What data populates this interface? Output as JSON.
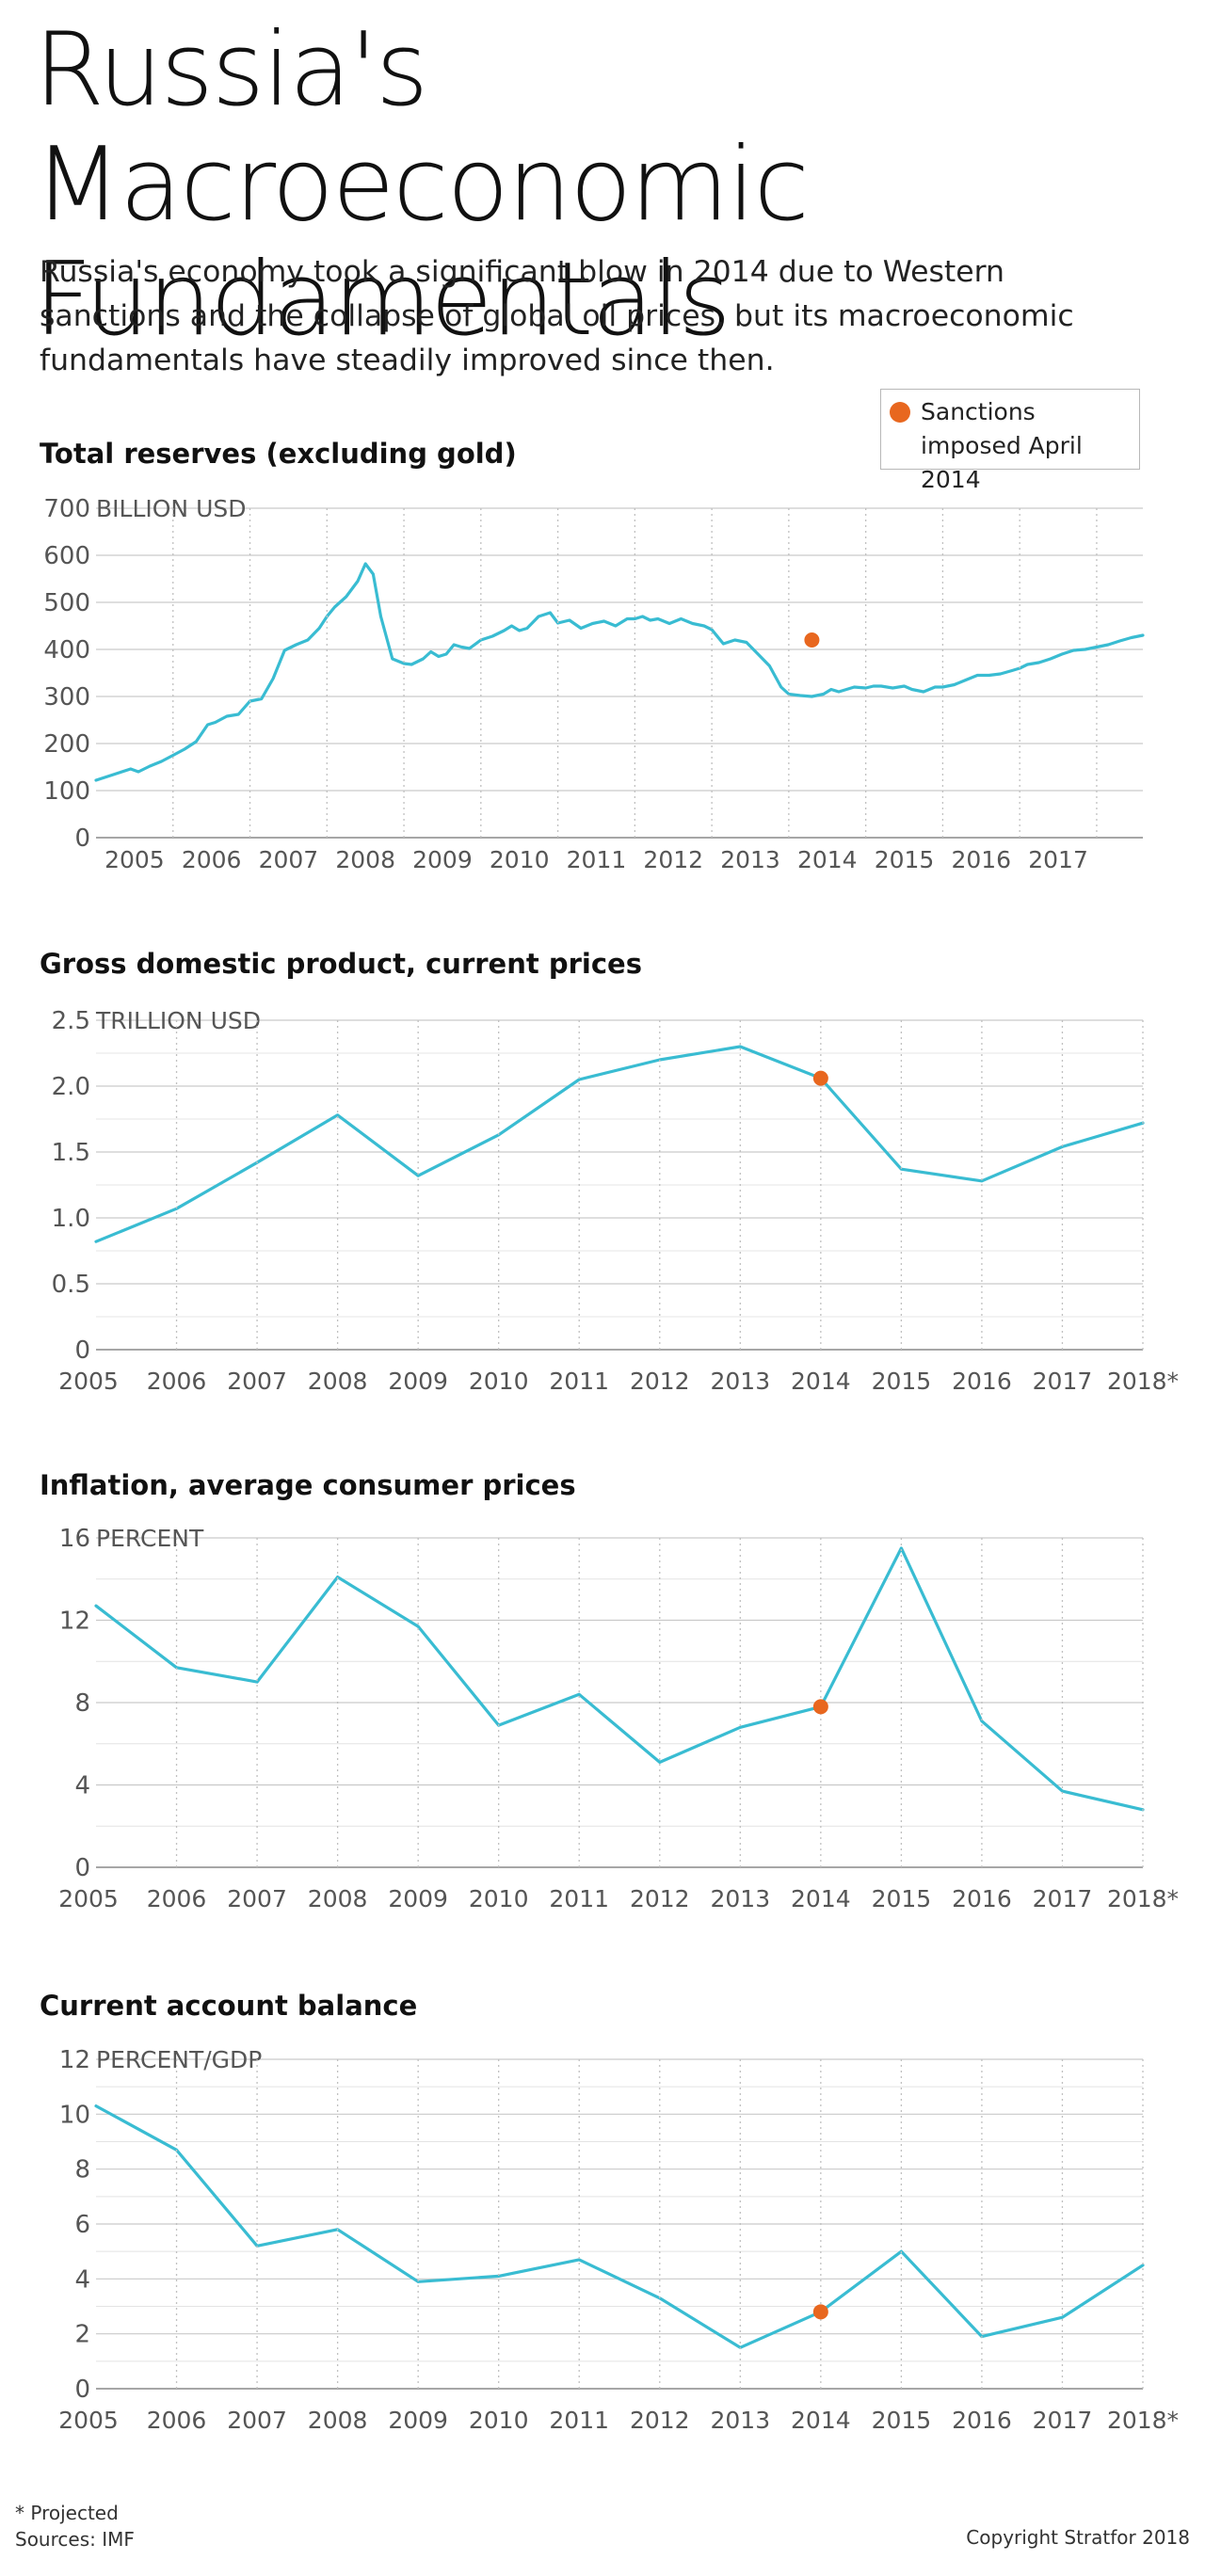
{
  "header": {
    "title": "Russia's Macroeconomic Fundamentals",
    "subtitle": "Russia's economy took a significant blow in 2014 due to Western sanctions and the collapse of global oil prices, but its macroeconomic fundamentals have steadily improved since then."
  },
  "legend": {
    "marker_label": "Sanctions imposed April 2014",
    "marker_color": "#e8671f"
  },
  "colors": {
    "line": "#39bcd2",
    "marker": "#e8671f",
    "grid": "#c9c9c9",
    "axis_text": "#555555"
  },
  "chart_data": [
    {
      "type": "line",
      "title": "Total reserves (excluding gold)",
      "unit_label": "BILLION USD",
      "ylim": [
        0,
        700
      ],
      "yticks": [
        "0",
        "100",
        "200",
        "300",
        "400",
        "500",
        "600",
        "700"
      ],
      "xlim": [
        2004.0,
        2017.6
      ],
      "xtick_labels": [
        "2005",
        "2006",
        "2007",
        "2008",
        "2009",
        "2010",
        "2011",
        "2012",
        "2013",
        "2014",
        "2015",
        "2016",
        "2017"
      ],
      "x_label_positions": [
        2004.5,
        2005.5,
        2006.5,
        2007.5,
        2008.5,
        2009.5,
        2010.5,
        2011.5,
        2012.5,
        2013.5,
        2014.5,
        2015.5,
        2016.5
      ],
      "x_gridlines": [
        2005,
        2006,
        2007,
        2008,
        2009,
        2010,
        2011,
        2012,
        2013,
        2014,
        2015,
        2016,
        2017
      ],
      "series": [
        {
          "x": [
            2004.0,
            2004.15,
            2004.3,
            2004.45,
            2004.55,
            2004.7,
            2004.85,
            2005.0,
            2005.15,
            2005.3,
            2005.45,
            2005.55,
            2005.7,
            2005.85,
            2006.0,
            2006.15,
            2006.3,
            2006.45,
            2006.6,
            2006.75,
            2006.9,
            2007.0,
            2007.1,
            2007.25,
            2007.4,
            2007.5,
            2007.6,
            2007.7,
            2007.85,
            2008.0,
            2008.1,
            2008.25,
            2008.35,
            2008.45,
            2008.55,
            2008.65,
            2008.75,
            2008.85,
            2009.0,
            2009.15,
            2009.3,
            2009.4,
            2009.5,
            2009.6,
            2009.75,
            2009.9,
            2010.0,
            2010.15,
            2010.3,
            2010.45,
            2010.6,
            2010.75,
            2010.9,
            2011.0,
            2011.1,
            2011.2,
            2011.3,
            2011.45,
            2011.6,
            2011.75,
            2011.9,
            2012.0,
            2012.15,
            2012.3,
            2012.45,
            2012.6,
            2012.75,
            2012.9,
            2013.0,
            2013.15,
            2013.3,
            2013.45,
            2013.55,
            2013.65,
            2013.75,
            2013.85,
            2014.0,
            2014.1,
            2014.2,
            2014.35,
            2014.5,
            2014.6,
            2014.75,
            2014.9,
            2015.0,
            2015.15,
            2015.3,
            2015.45,
            2015.6,
            2015.75,
            2015.9,
            2016.0,
            2016.1,
            2016.25,
            2016.4,
            2016.55,
            2016.7,
            2016.85,
            2017.0,
            2017.15,
            2017.3,
            2017.45,
            2017.6
          ],
          "y": [
            122,
            130,
            138,
            146,
            140,
            152,
            162,
            175,
            188,
            204,
            240,
            245,
            258,
            262,
            290,
            295,
            338,
            398,
            410,
            420,
            445,
            470,
            490,
            512,
            545,
            582,
            560,
            470,
            380,
            370,
            368,
            380,
            395,
            385,
            390,
            410,
            405,
            402,
            420,
            428,
            440,
            450,
            440,
            445,
            470,
            478,
            456,
            462,
            445,
            455,
            460,
            450,
            465,
            465,
            470,
            462,
            465,
            455,
            465,
            455,
            450,
            442,
            412,
            420,
            415,
            390,
            365,
            320,
            305,
            302,
            300,
            305,
            315,
            310,
            315,
            320,
            318,
            322,
            322,
            318,
            322,
            315,
            310,
            320,
            320,
            325,
            335,
            345,
            345,
            348,
            355,
            360,
            368,
            372,
            380,
            390,
            398,
            400,
            405,
            410,
            418,
            425,
            430
          ],
          "name": ""
        }
      ],
      "marker": {
        "x": 2013.3,
        "y": 420
      }
    },
    {
      "type": "line",
      "title": "Gross domestic product, current prices",
      "unit_label": "TRILLION USD",
      "ylim": [
        0,
        2.5
      ],
      "yticks": [
        "0",
        "0.5",
        "1.0",
        "1.5",
        "2.0",
        "2.5"
      ],
      "categories": [
        "2005",
        "2006",
        "2007",
        "2008",
        "2009",
        "2010",
        "2011",
        "2012",
        "2013",
        "2014",
        "2015",
        "2016",
        "2017",
        "2018*"
      ],
      "series": [
        {
          "name": "",
          "values": [
            0.82,
            1.07,
            1.42,
            1.78,
            1.32,
            1.63,
            2.05,
            2.2,
            2.3,
            2.06,
            1.37,
            1.28,
            1.54,
            1.72
          ]
        }
      ],
      "marker": {
        "x": "2014",
        "y": 2.06
      }
    },
    {
      "type": "line",
      "title": "Inflation, average consumer prices",
      "unit_label": "PERCENT",
      "ylim": [
        0,
        16
      ],
      "yticks": [
        "0",
        "4",
        "8",
        "12",
        "16"
      ],
      "categories": [
        "2005",
        "2006",
        "2007",
        "2008",
        "2009",
        "2010",
        "2011",
        "2012",
        "2013",
        "2014",
        "2015",
        "2016",
        "2017",
        "2018*"
      ],
      "series": [
        {
          "name": "",
          "values": [
            12.7,
            9.7,
            9.0,
            14.1,
            11.7,
            6.9,
            8.4,
            5.1,
            6.8,
            7.8,
            15.5,
            7.1,
            3.7,
            2.8
          ]
        }
      ],
      "marker": {
        "x": "2014",
        "y": 7.8
      }
    },
    {
      "type": "line",
      "title": "Current account balance",
      "unit_label": "PERCENT/GDP",
      "ylim": [
        0,
        12
      ],
      "yticks": [
        "0",
        "2",
        "4",
        "6",
        "8",
        "10",
        "12"
      ],
      "categories": [
        "2005",
        "2006",
        "2007",
        "2008",
        "2009",
        "2010",
        "2011",
        "2012",
        "2013",
        "2014",
        "2015",
        "2016",
        "2017",
        "2018*"
      ],
      "series": [
        {
          "name": "",
          "values": [
            10.3,
            8.7,
            5.2,
            5.8,
            3.9,
            4.1,
            4.7,
            3.3,
            1.5,
            2.8,
            5.0,
            1.9,
            2.6,
            4.5
          ]
        }
      ],
      "marker": {
        "x": "2014",
        "y": 2.8
      }
    }
  ],
  "footer": {
    "note": "* Projected",
    "sources": "Sources: IMF",
    "copyright": "Copyright Stratfor 2018"
  }
}
